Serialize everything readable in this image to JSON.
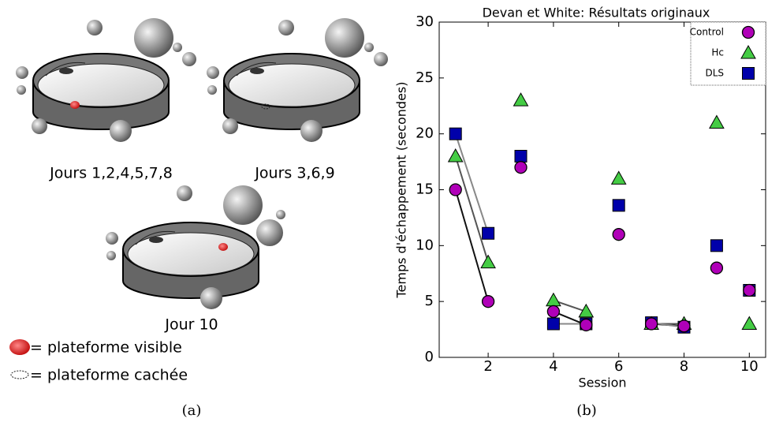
{
  "figure_a": {
    "labels": [
      "Jours 1,2,4,5,7,8",
      "Jours 3,6,9",
      "Jour 10"
    ],
    "legend_visible": "= plateforme visible",
    "legend_hidden": "= plateforme cachée",
    "caption": "(a)"
  },
  "chart_data": {
    "type": "scatter",
    "title": "Devan et White: Résultats originaux",
    "x_label": "Session",
    "y_label": "Temps d'échappement (secondes)",
    "caption": "(b)",
    "x": [
      1,
      2,
      3,
      4,
      5,
      6,
      7,
      8,
      9,
      10
    ],
    "joined_sessions": [
      [
        1,
        2
      ],
      [
        4,
        5
      ],
      [
        7,
        8
      ]
    ],
    "series": [
      {
        "name": "Control",
        "marker": "circle",
        "color": "#b000b8",
        "line_color": "#111111",
        "values": [
          15,
          5,
          17,
          4.1,
          2.9,
          11,
          3,
          2.8,
          8,
          6
        ]
      },
      {
        "name": "Hc",
        "marker": "triangle",
        "color": "#44cc44",
        "line_color": "#555555",
        "values": [
          18,
          8.5,
          23,
          5.1,
          4.1,
          16,
          3,
          3,
          21,
          3
        ]
      },
      {
        "name": "DLS",
        "marker": "square",
        "color": "#0000aa",
        "line_color": "#888888",
        "values": [
          20,
          11.1,
          18,
          3,
          3,
          13.6,
          3.1,
          2.7,
          10,
          6
        ]
      }
    ],
    "xlim": [
      0.5,
      10.5
    ],
    "ylim": [
      0,
      30
    ],
    "xticks": [
      2,
      4,
      6,
      8,
      10
    ],
    "yticks": [
      0,
      5,
      10,
      15,
      20,
      25,
      30
    ],
    "legend": "upper right"
  }
}
